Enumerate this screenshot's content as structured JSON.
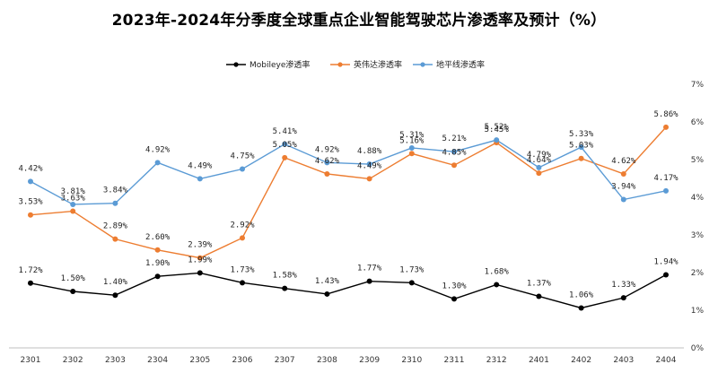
{
  "chart_data": {
    "type": "line",
    "title": "2023年-2024年分季度全球重点企业智能驾驶芯片渗透率及预计（%）",
    "categories": [
      "2301",
      "2302",
      "2303",
      "2304",
      "2305",
      "2306",
      "2307",
      "2308",
      "2309",
      "2310",
      "2311",
      "2312",
      "2401",
      "2402",
      "2403",
      "2404"
    ],
    "series": [
      {
        "name": "Mobileye渗透率",
        "color": "#000000",
        "values": [
          1.72,
          1.5,
          1.4,
          1.9,
          1.99,
          1.73,
          1.58,
          1.43,
          1.77,
          1.73,
          1.3,
          1.68,
          1.37,
          1.06,
          1.33,
          1.94
        ]
      },
      {
        "name": "英伟达渗透率",
        "color": "#ED7D31",
        "values": [
          3.53,
          3.63,
          2.89,
          2.6,
          2.39,
          2.92,
          5.05,
          4.62,
          4.49,
          5.16,
          4.85,
          5.45,
          4.64,
          5.03,
          4.62,
          5.86
        ]
      },
      {
        "name": "地平线渗透率",
        "color": "#5B9BD5",
        "values": [
          4.42,
          3.81,
          3.84,
          4.92,
          4.49,
          4.75,
          5.41,
          4.92,
          4.88,
          5.31,
          5.21,
          5.52,
          4.79,
          5.33,
          3.94,
          4.17
        ]
      }
    ],
    "ylim": [
      0,
      7
    ],
    "yticks": [
      "0%",
      "1%",
      "2%",
      "3%",
      "4%",
      "5%",
      "6%",
      "7%"
    ],
    "legend": "top-center",
    "grid": false
  }
}
